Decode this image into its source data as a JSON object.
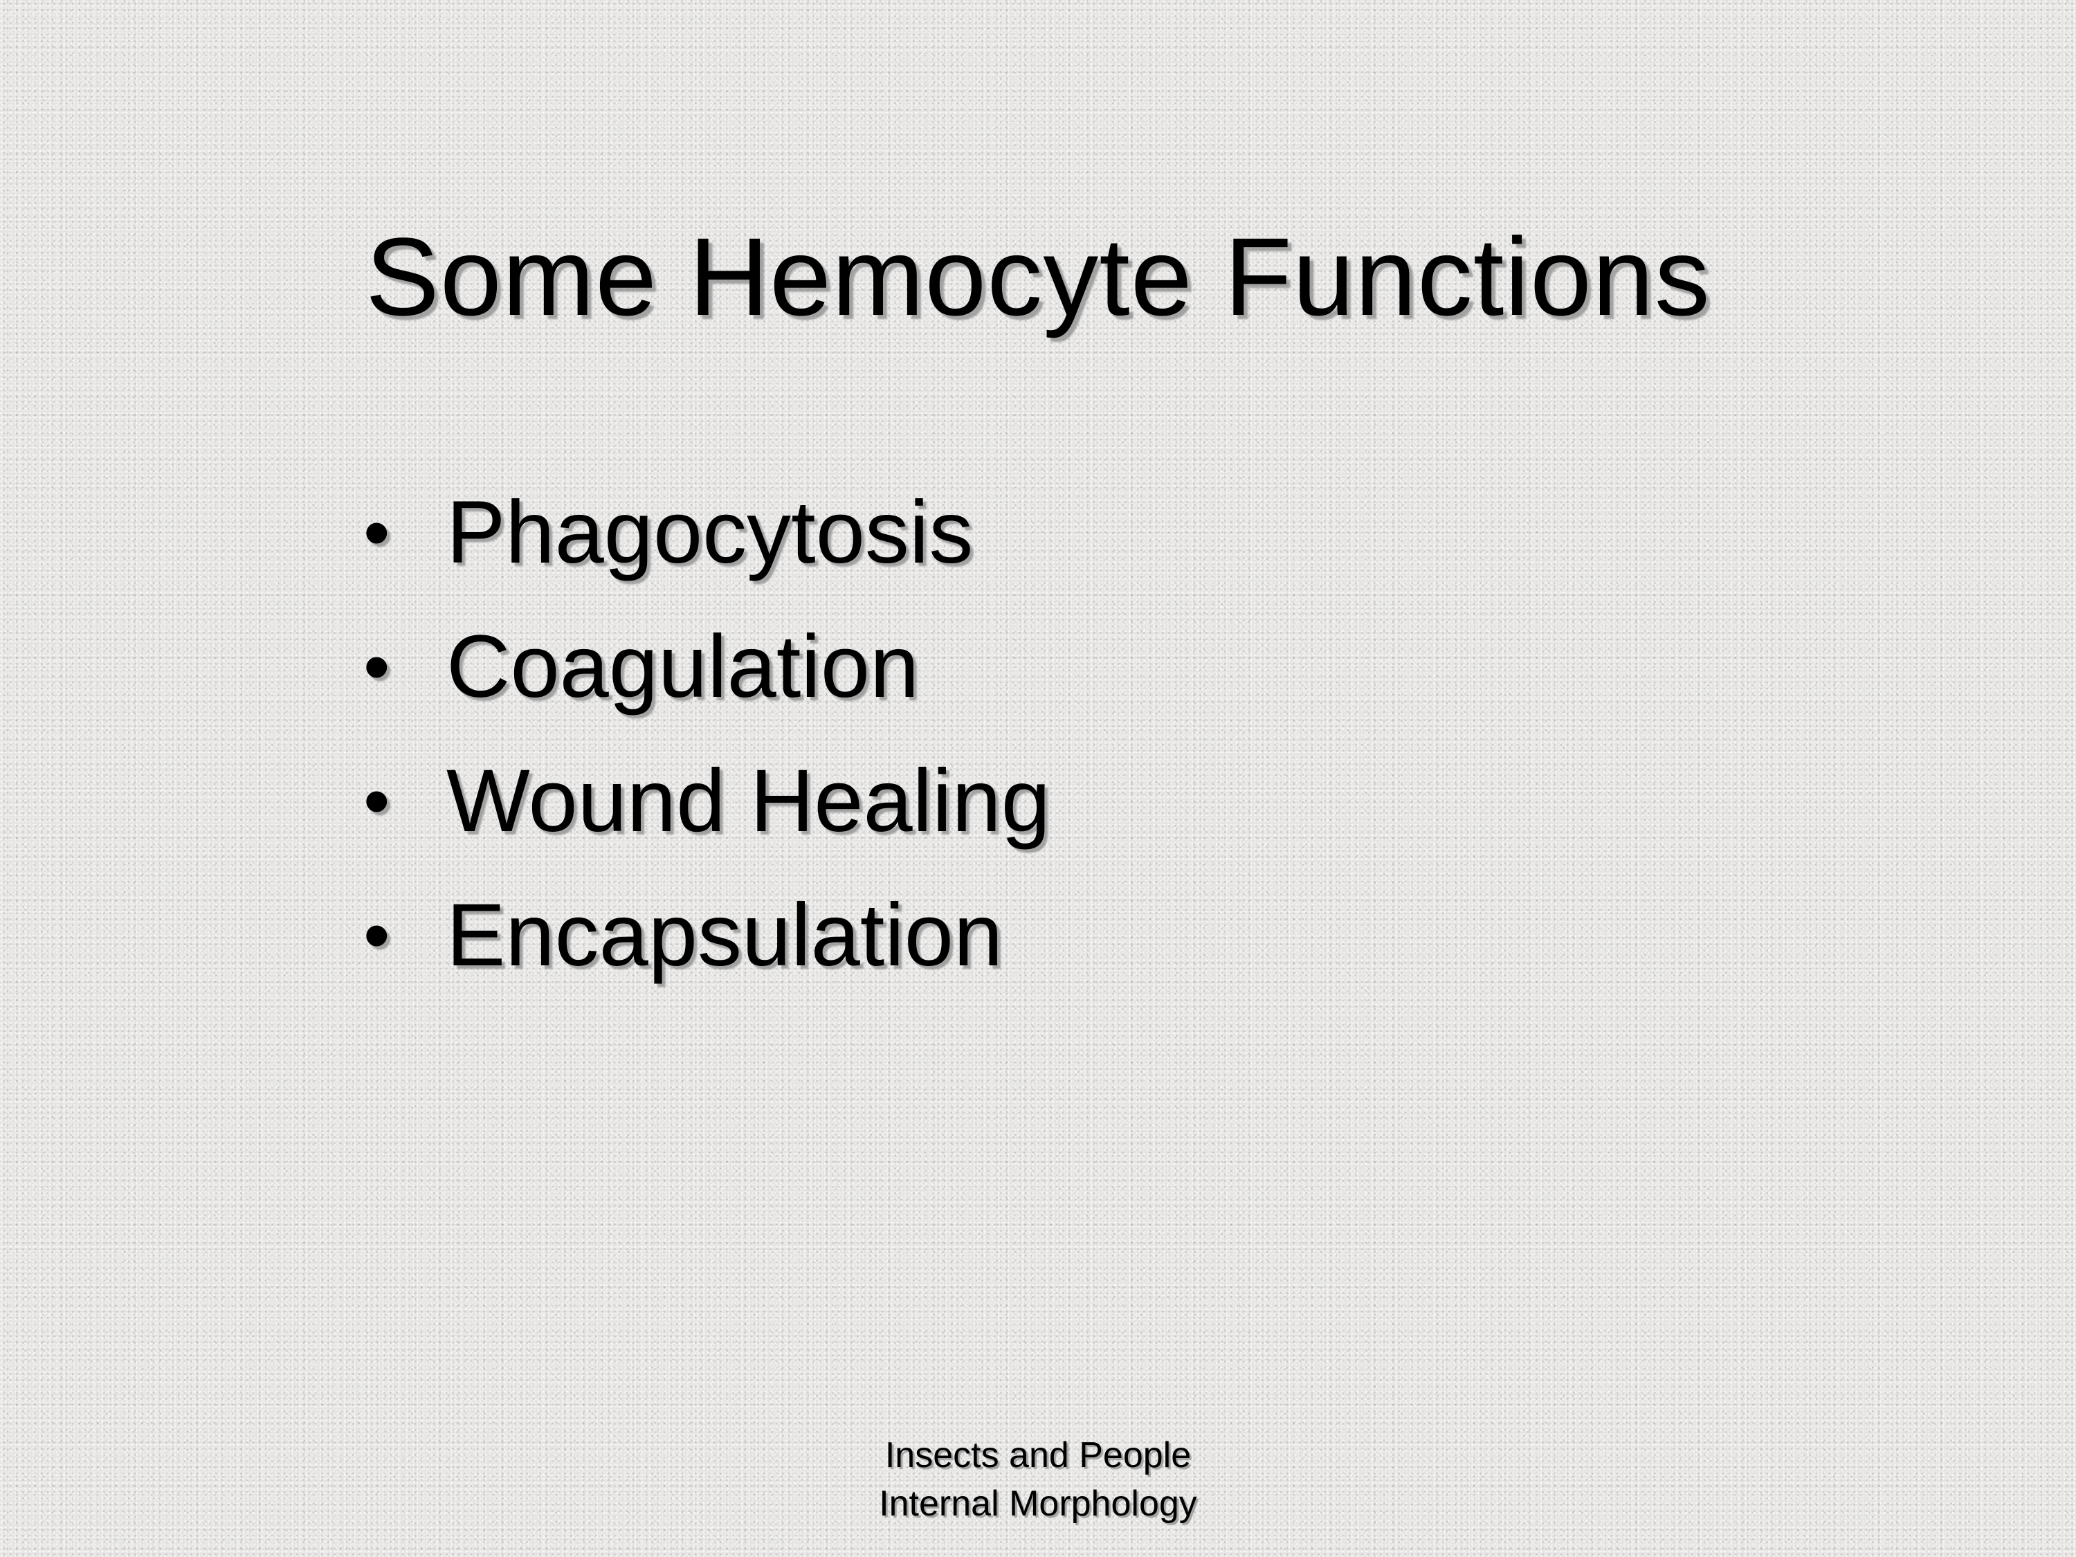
{
  "slide": {
    "title": "Some Hemocyte Functions",
    "bullet_glyph": "•",
    "bullets": [
      {
        "text": "Phagocytosis"
      },
      {
        "text": "Coagulation"
      },
      {
        "text": "Wound Healing"
      },
      {
        "text": "Encapsulation"
      }
    ],
    "footer": {
      "line1": "Insects and People",
      "line2": "Internal Morphology"
    }
  },
  "colors": {
    "background": "#e4e3e1",
    "text": "#000000",
    "shadow": "#8c8c8c"
  }
}
